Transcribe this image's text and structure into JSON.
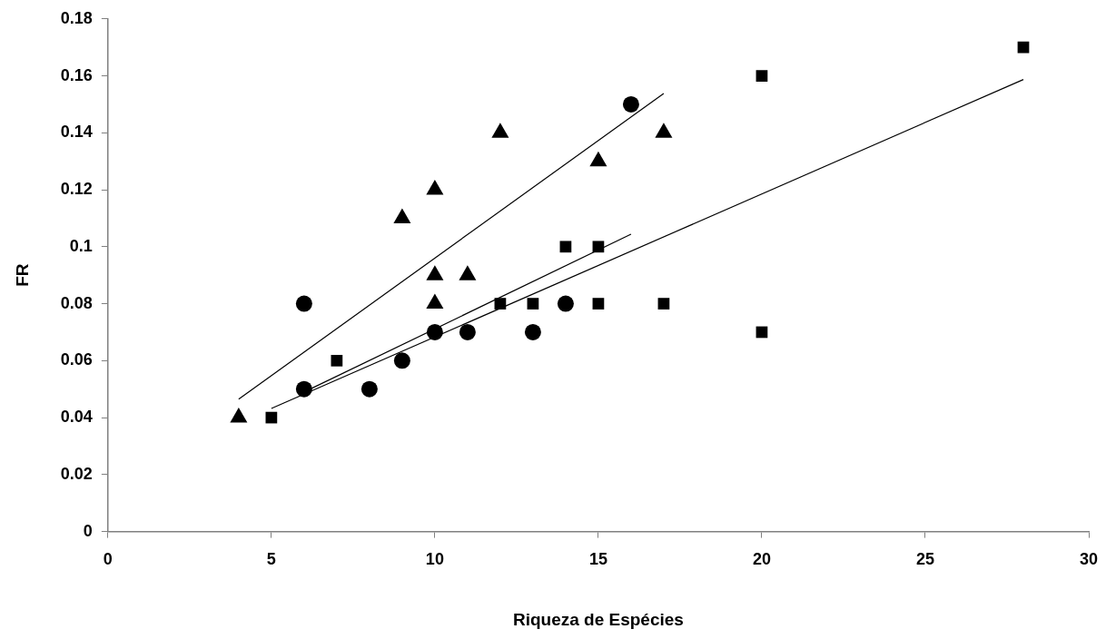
{
  "chart_data": {
    "type": "scatter",
    "xlabel": "Riqueza de Espécies",
    "ylabel": "FR",
    "xlim": [
      0,
      30
    ],
    "xticks": [
      0,
      5,
      10,
      15,
      20,
      25,
      30
    ],
    "ylim": [
      0,
      0.18
    ],
    "yticks": [
      0,
      0.02,
      0.04,
      0.06,
      0.08,
      0.1,
      0.12,
      0.14,
      0.16,
      0.18
    ],
    "grid": false,
    "legend": false,
    "series": [
      {
        "color": "#000000",
        "marker": "triangle",
        "x": [
          4,
          9,
          10,
          10,
          10,
          11,
          12,
          15,
          17
        ],
        "values": [
          0.04,
          0.11,
          0.12,
          0.09,
          0.08,
          0.09,
          0.14,
          0.13,
          0.14
        ]
      },
      {
        "color": "#000000",
        "marker": "circle",
        "x": [
          6,
          6,
          8,
          9,
          10,
          11,
          13,
          14,
          16
        ],
        "values": [
          0.08,
          0.05,
          0.05,
          0.06,
          0.07,
          0.07,
          0.07,
          0.08,
          0.15
        ]
      },
      {
        "color": "#000000",
        "marker": "square",
        "x": [
          5,
          7,
          12,
          13,
          14,
          15,
          15,
          17,
          20,
          20,
          28
        ],
        "values": [
          0.04,
          0.06,
          0.08,
          0.08,
          0.1,
          0.1,
          0.08,
          0.08,
          0.16,
          0.07,
          0.17
        ]
      },
      {
        "type": "line",
        "color": "#000000",
        "marker": "none",
        "line_style": "solid",
        "x": [
          4,
          17
        ],
        "values": [
          0.0465,
          0.1538
        ]
      },
      {
        "type": "line",
        "color": "#000000",
        "marker": "none",
        "line_style": "solid",
        "x": [
          6,
          16
        ],
        "values": [
          0.049,
          0.1044
        ]
      },
      {
        "type": "line",
        "color": "#000000",
        "marker": "none",
        "line_style": "solid",
        "x": [
          5,
          28
        ],
        "values": [
          0.0432,
          0.1587
        ]
      }
    ]
  }
}
